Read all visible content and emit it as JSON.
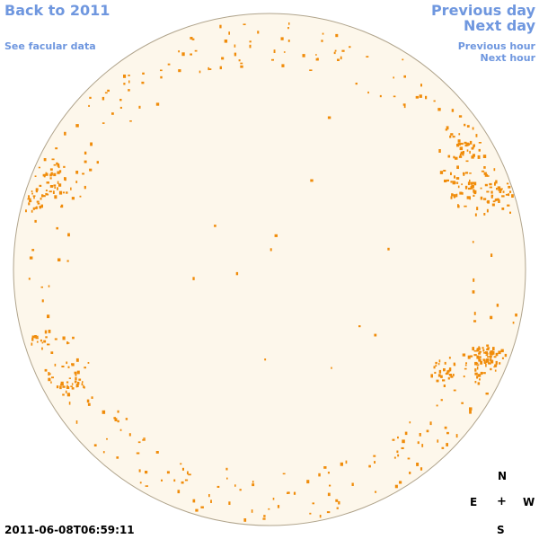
{
  "nav": {
    "back_label": "Back to 2011",
    "facular_label": "See facular data",
    "prev_day_label": "Previous day",
    "next_day_label": "Next day",
    "prev_hour_label": "Previous hour",
    "next_hour_label": "Next hour"
  },
  "timestamp": "2011-06-08T06:59:11",
  "compass": {
    "north": "N",
    "east": "E",
    "center": "+",
    "west": "W",
    "south": "S"
  },
  "colors": {
    "link": "#6f97df",
    "disk_fill": "#fdf7eb",
    "disk_outline": "#b0a48c",
    "facula": "#f08c0a"
  }
}
